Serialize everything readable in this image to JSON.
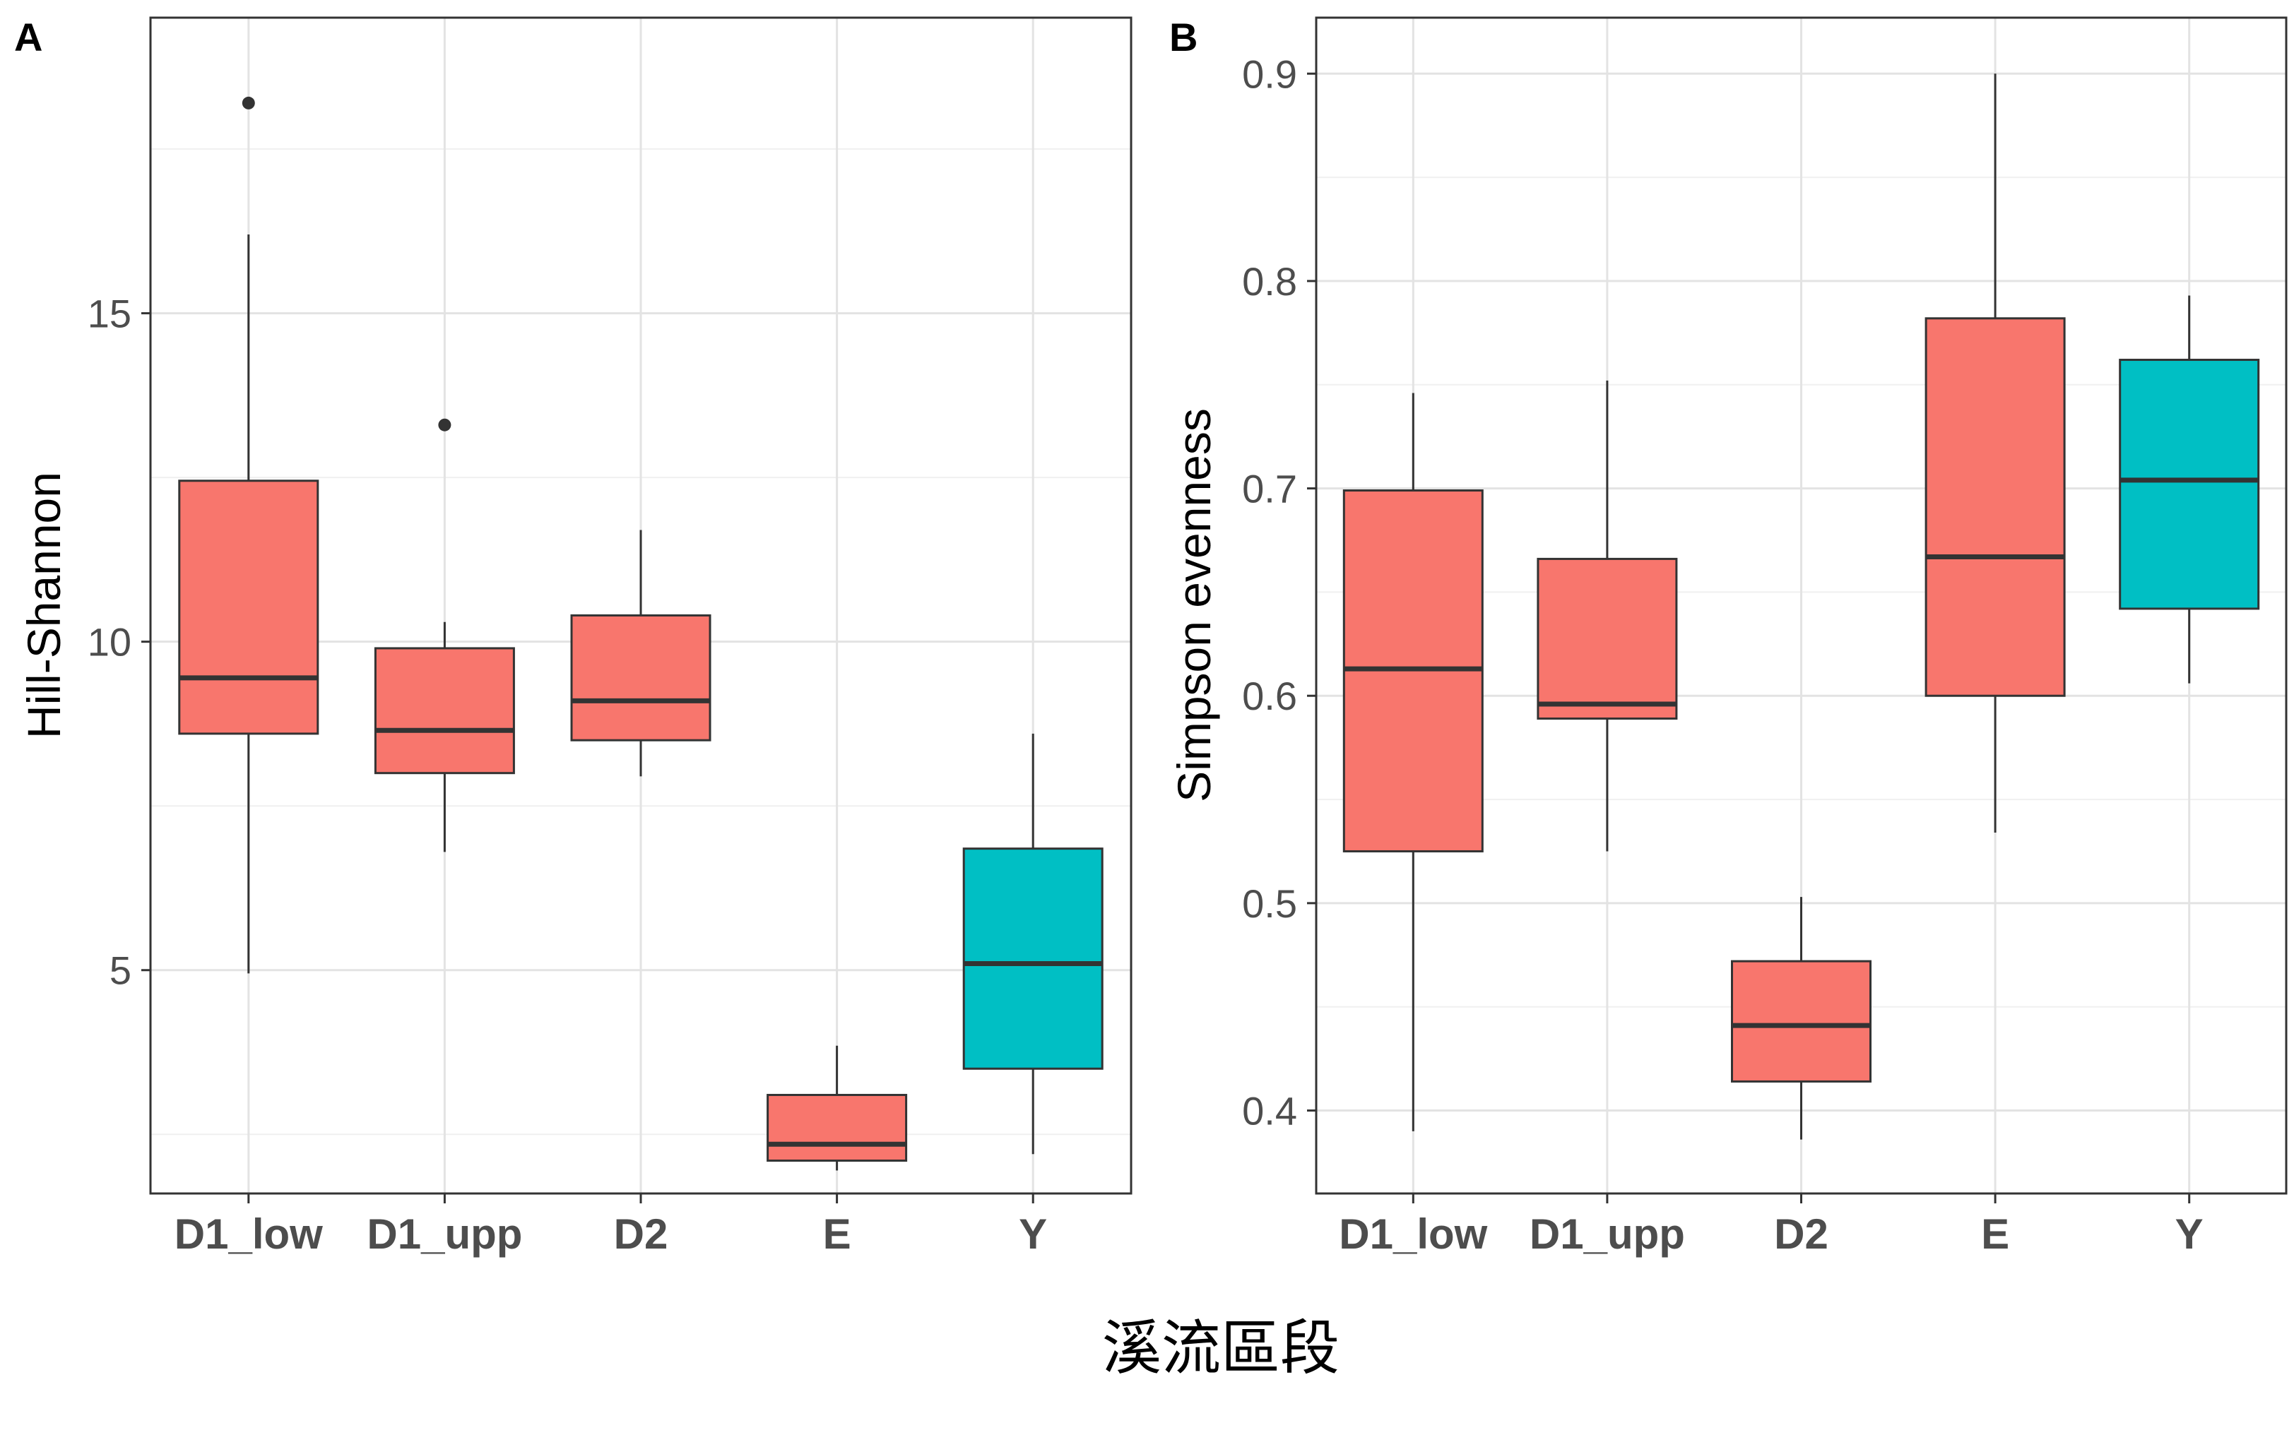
{
  "xlabel": "溪流區段",
  "chart_data": [
    {
      "type": "boxplot",
      "panel": "A",
      "ylabel": "Hill-Shannon",
      "xlabel": "溪流區段",
      "categories": [
        "D1_low",
        "D1_upp",
        "D2",
        "E",
        "Y"
      ],
      "ylim": [
        1.6,
        19.5
      ],
      "yticks": [
        5,
        10,
        15
      ],
      "ytick_labels": [
        "5",
        "10",
        "15"
      ],
      "minor_yticks": [
        2.5,
        7.5,
        12.5,
        17.5
      ],
      "grid": true,
      "series": [
        {
          "name": "D1_low",
          "color": "#F8766D",
          "whisker_low": 4.95,
          "q1": 8.6,
          "median": 9.45,
          "q3": 12.45,
          "whisker_high": 16.2,
          "outliers": [
            18.2
          ]
        },
        {
          "name": "D1_upp",
          "color": "#F8766D",
          "whisker_low": 6.8,
          "q1": 8.0,
          "median": 8.65,
          "q3": 9.9,
          "whisker_high": 10.3,
          "outliers": [
            13.3
          ]
        },
        {
          "name": "D2",
          "color": "#F8766D",
          "whisker_low": 7.95,
          "q1": 8.5,
          "median": 9.1,
          "q3": 10.4,
          "whisker_high": 11.7,
          "outliers": []
        },
        {
          "name": "E",
          "color": "#F8766D",
          "whisker_low": 1.95,
          "q1": 2.1,
          "median": 2.35,
          "q3": 3.1,
          "whisker_high": 3.85,
          "outliers": []
        },
        {
          "name": "Y",
          "color": "#00BFC4",
          "whisker_low": 2.2,
          "q1": 3.5,
          "median": 5.1,
          "q3": 6.85,
          "whisker_high": 8.6,
          "outliers": []
        }
      ]
    },
    {
      "type": "boxplot",
      "panel": "B",
      "ylabel": "Simpson evenness",
      "xlabel": "溪流區段",
      "categories": [
        "D1_low",
        "D1_upp",
        "D2",
        "E",
        "Y"
      ],
      "ylim": [
        0.36,
        0.927
      ],
      "yticks": [
        0.4,
        0.5,
        0.6,
        0.7,
        0.8,
        0.9
      ],
      "ytick_labels": [
        "0.4",
        "0.5",
        "0.6",
        "0.7",
        "0.8",
        "0.9"
      ],
      "minor_yticks": [
        0.45,
        0.55,
        0.65,
        0.75,
        0.85
      ],
      "grid": true,
      "series": [
        {
          "name": "D1_low",
          "color": "#F8766D",
          "whisker_low": 0.39,
          "q1": 0.525,
          "median": 0.613,
          "q3": 0.699,
          "whisker_high": 0.746,
          "outliers": []
        },
        {
          "name": "D1_upp",
          "color": "#F8766D",
          "whisker_low": 0.525,
          "q1": 0.589,
          "median": 0.596,
          "q3": 0.666,
          "whisker_high": 0.752,
          "outliers": []
        },
        {
          "name": "D2",
          "color": "#F8766D",
          "whisker_low": 0.386,
          "q1": 0.414,
          "median": 0.441,
          "q3": 0.472,
          "whisker_high": 0.503,
          "outliers": []
        },
        {
          "name": "E",
          "color": "#F8766D",
          "whisker_low": 0.534,
          "q1": 0.6,
          "median": 0.667,
          "q3": 0.782,
          "whisker_high": 0.9,
          "outliers": []
        },
        {
          "name": "Y",
          "color": "#00BFC4",
          "whisker_low": 0.606,
          "q1": 0.642,
          "median": 0.704,
          "q3": 0.762,
          "whisker_high": 0.793,
          "outliers": []
        }
      ]
    }
  ]
}
